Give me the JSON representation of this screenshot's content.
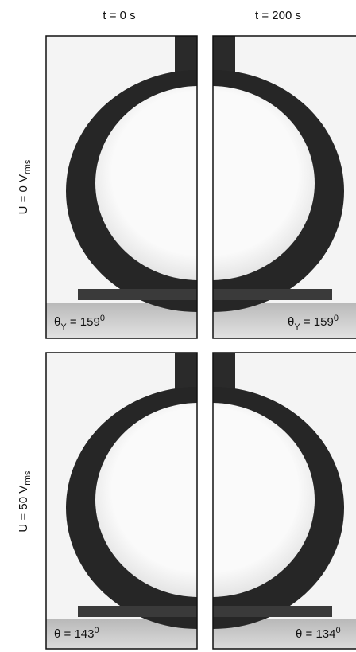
{
  "columns": [
    "t = 0 s",
    "t = 200 s"
  ],
  "rows": [
    {
      "label": {
        "main": "U = 0 V",
        "sub": "rms"
      },
      "panels": [
        {
          "symbol": "θ",
          "sub": "Y",
          "text": " = 159",
          "sup": "0"
        },
        {
          "symbol": "θ",
          "sub": "Y",
          "text": " = 159",
          "sup": "0"
        }
      ]
    },
    {
      "label": {
        "main": "U = 50 V",
        "sub": "rms"
      },
      "panels": [
        {
          "symbol": "θ",
          "text": " = 143",
          "sup": "0"
        },
        {
          "symbol": "θ",
          "text": " = 134",
          "sup": "0"
        }
      ]
    }
  ]
}
